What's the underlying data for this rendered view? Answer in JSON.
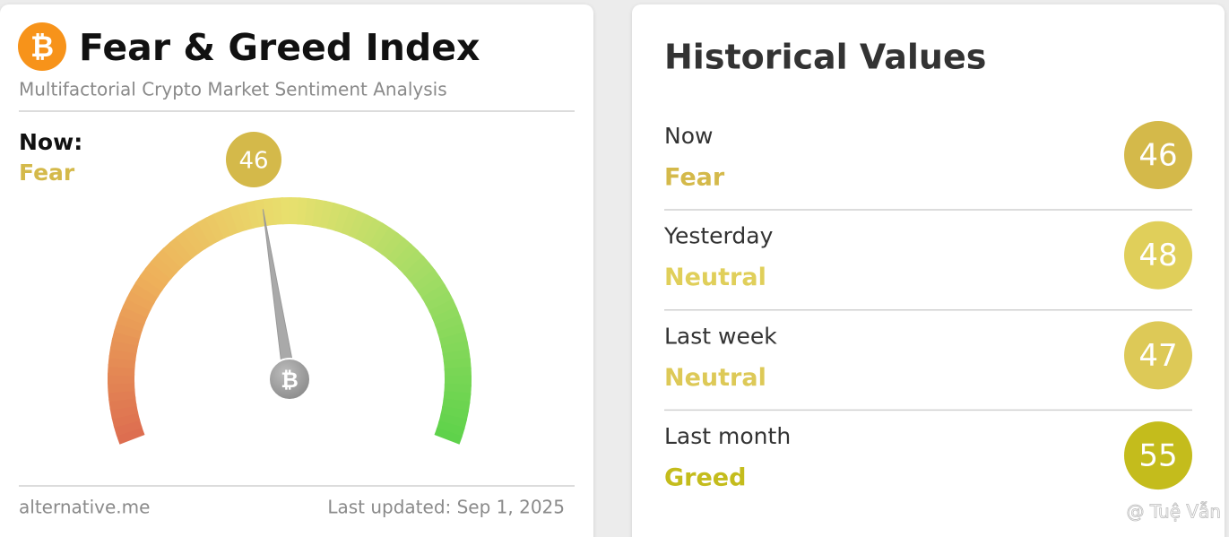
{
  "index_card": {
    "title": "Fear & Greed Index",
    "subtitle": "Multifactorial Crypto Market Sentiment Analysis",
    "now_label": "Now:",
    "classification": "Fear",
    "value": 46,
    "color": "#d4b94a",
    "gauge_range": [
      0,
      100
    ],
    "source": "alternative.me",
    "last_updated": "Last updated: Sep 1, 2025"
  },
  "historical": {
    "title": "Historical Values",
    "rows": [
      {
        "label": "Now",
        "classification": "Fear",
        "value": 46,
        "color": "#d4b94a"
      },
      {
        "label": "Yesterday",
        "classification": "Neutral",
        "value": 48,
        "color": "#e0cf5a"
      },
      {
        "label": "Last week",
        "classification": "Neutral",
        "value": 47,
        "color": "#ddc957"
      },
      {
        "label": "Last month",
        "classification": "Greed",
        "value": 55,
        "color": "#c4bc1c"
      }
    ]
  },
  "watermark": "@ Tuệ Vẫn"
}
